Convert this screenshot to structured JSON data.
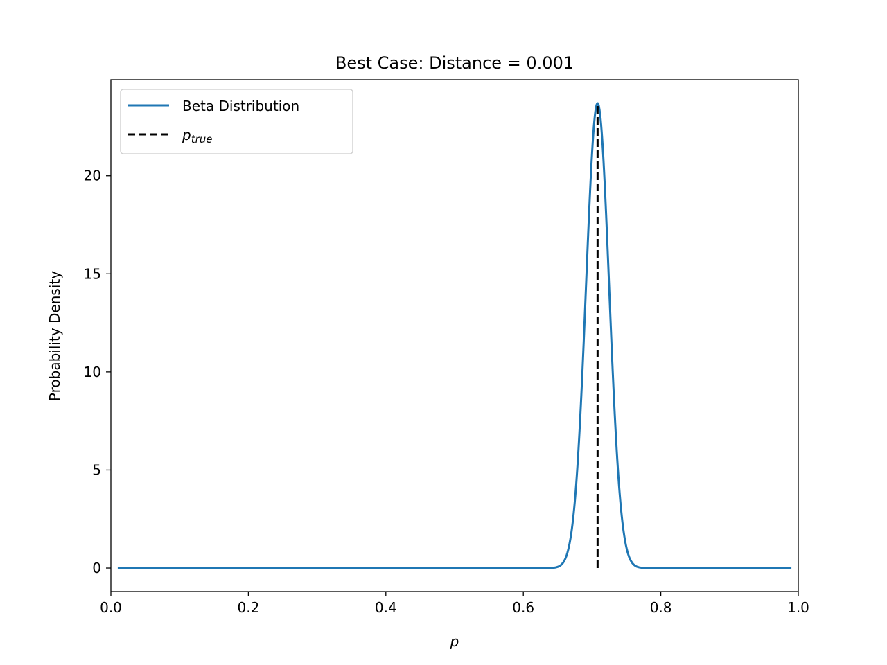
{
  "chart_data": {
    "type": "line",
    "title": "Best Case: Distance = 0.001",
    "xlabel": "p",
    "ylabel": "Probability Density",
    "xlim": [
      0.0,
      1.0
    ],
    "ylim": [
      -1.2,
      24.9
    ],
    "x_ticks": [
      0.0,
      0.2,
      0.4,
      0.6,
      0.8,
      1.0
    ],
    "x_tick_labels": [
      "0.0",
      "0.2",
      "0.4",
      "0.6",
      "0.8",
      "1.0"
    ],
    "y_ticks": [
      0,
      5,
      10,
      15,
      20
    ],
    "y_tick_labels": [
      "0",
      "5",
      "10",
      "15",
      "20"
    ],
    "grid": false,
    "legend_position": "top-left",
    "series": [
      {
        "name": "Beta Distribution",
        "kind": "curve",
        "color": "#1f77b4",
        "style": "solid",
        "x_range": [
          0.01,
          0.99
        ],
        "peak_x": 0.708,
        "peak_y": 23.7,
        "points": [
          [
            0.01,
            0.0
          ],
          [
            0.6,
            0.0
          ],
          [
            0.63,
            0.0
          ],
          [
            0.64,
            0.03
          ],
          [
            0.65,
            0.14
          ],
          [
            0.66,
            0.65
          ],
          [
            0.67,
            2.1
          ],
          [
            0.68,
            5.6
          ],
          [
            0.69,
            11.6
          ],
          [
            0.7,
            19.2
          ],
          [
            0.708,
            23.7
          ],
          [
            0.72,
            19.0
          ],
          [
            0.73,
            11.4
          ],
          [
            0.74,
            5.4
          ],
          [
            0.75,
            1.9
          ],
          [
            0.76,
            0.5
          ],
          [
            0.77,
            0.1
          ],
          [
            0.78,
            0.01
          ],
          [
            0.8,
            0.0
          ],
          [
            0.99,
            0.0
          ]
        ]
      },
      {
        "name": "p_true",
        "legend_main": "p",
        "legend_sub": "true",
        "kind": "vline",
        "color": "#000000",
        "style": "dashed",
        "x": 0.708,
        "y_range": [
          0,
          23.7
        ]
      }
    ]
  }
}
